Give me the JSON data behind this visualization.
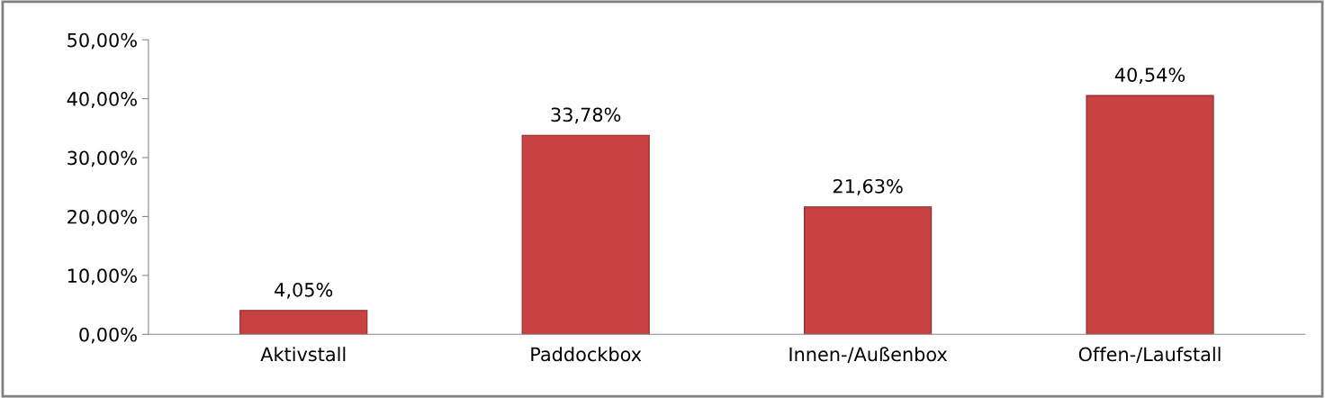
{
  "chart_data": {
    "type": "bar",
    "categories": [
      "Aktivstall",
      "Paddockbox",
      "Innen-/Außenbox",
      "Offen-/Laufstall"
    ],
    "values": [
      4.05,
      33.78,
      21.63,
      40.54
    ],
    "value_labels": [
      "4,05%",
      "33,78%",
      "21,63%",
      "40,54%"
    ],
    "color": "#c94242",
    "ylim": [
      0,
      50
    ],
    "yticks": [
      {
        "value": 0,
        "label": "0,00%"
      },
      {
        "value": 10,
        "label": "10,00%"
      },
      {
        "value": 20,
        "label": "20,00%"
      },
      {
        "value": 30,
        "label": "30,00%"
      },
      {
        "value": 40,
        "label": "40,00%"
      },
      {
        "value": 50,
        "label": "50,00%"
      }
    ],
    "grid": false,
    "legend": false
  }
}
